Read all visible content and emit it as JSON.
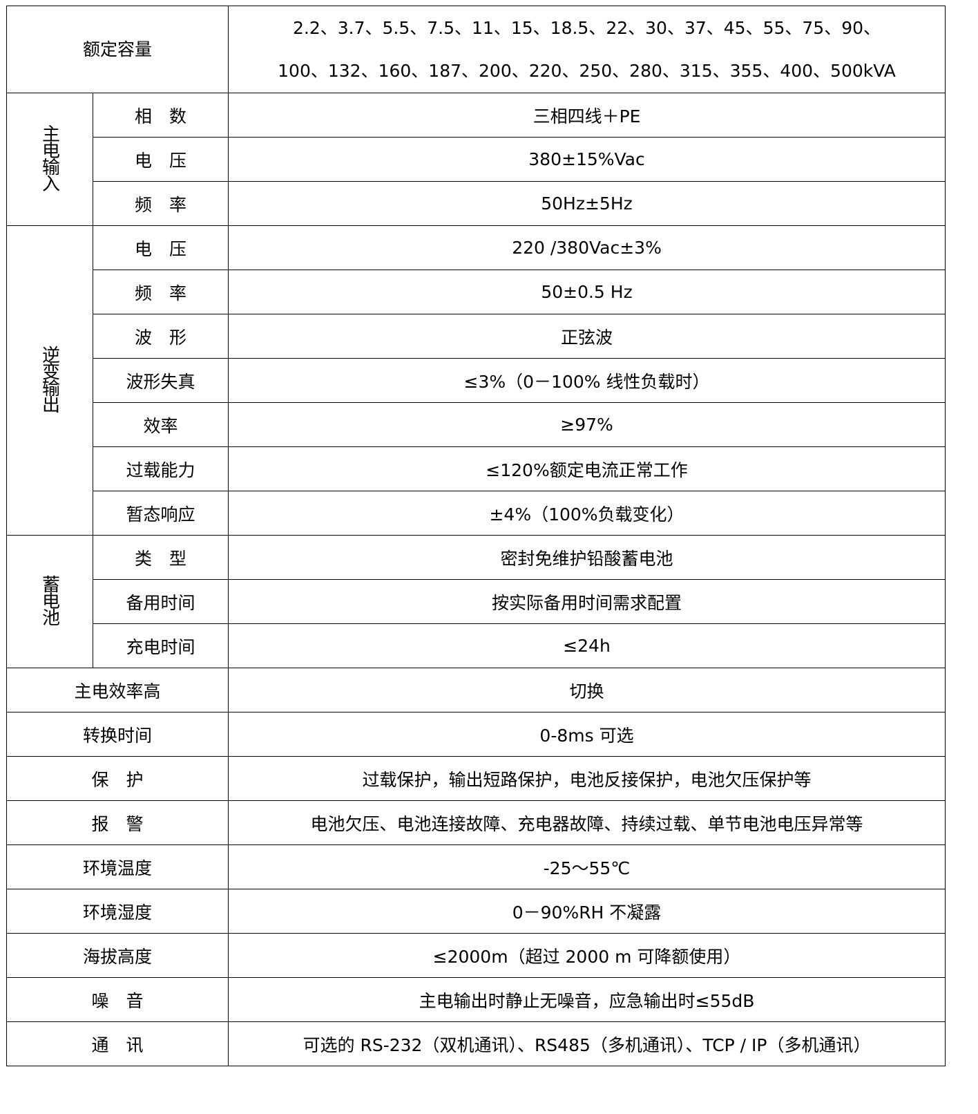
{
  "rated_capacity": {
    "label": "额定容量",
    "line1": "2.2、3.7、5.5、7.5、11、15、18.5、22、30、37、45、55、75、90、",
    "line2": "100、132、160、187、200、220、250、280、315、355、400、500kVA"
  },
  "mains_input": {
    "group": "主电输入",
    "rows": [
      {
        "label": "相　数",
        "value": "三相四线＋PE"
      },
      {
        "label": "电　压",
        "value": "380±15%Vac"
      },
      {
        "label": "频　率",
        "value": "50Hz±5Hz"
      }
    ]
  },
  "inverter_output": {
    "group": "逆变输出",
    "rows": [
      {
        "label": "电　压",
        "value": "220 /380Vac±3%"
      },
      {
        "label": "频　率",
        "value": "50±0.5 Hz"
      },
      {
        "label": "波　形",
        "value": "正弦波"
      },
      {
        "label": "波形失真",
        "value": "≤3%（0－100% 线性负载时）"
      },
      {
        "label": "效率",
        "value": "≥97%"
      },
      {
        "label": "过载能力",
        "value": "≤120%额定电流正常工作"
      },
      {
        "label": "暂态响应",
        "value": "±4%（100%负载变化）"
      }
    ]
  },
  "battery": {
    "group": "蓄电池",
    "rows": [
      {
        "label": "类　型",
        "value": "密封免维护铅酸蓄电池"
      },
      {
        "label": "备用时间",
        "value": "按实际备用时间需求配置"
      },
      {
        "label": "充电时间",
        "value": "≤24h"
      }
    ]
  },
  "other": [
    {
      "label": "主电效率高",
      "value": "切换"
    },
    {
      "label": "转换时间",
      "value": "0-8ms 可选"
    },
    {
      "label": "保　护",
      "value": "过载保护，输出短路保护，电池反接保护，电池欠压保护等"
    },
    {
      "label": "报　警",
      "value": "电池欠压、电池连接故障、充电器故障、持续过载、单节电池电压异常等"
    },
    {
      "label": "环境温度",
      "value": "-25～55℃"
    },
    {
      "label": "环境湿度",
      "value": "0－90%RH 不凝露"
    },
    {
      "label": "海拔高度",
      "value": "≤2000m（超过 2000 m 可降额使用）"
    },
    {
      "label": "噪　音",
      "value": "主电输出时静止无噪音，应急输出时≤55dB"
    },
    {
      "label": "通　讯",
      "value": "可选的 RS-232（双机通讯）、RS485（多机通讯）、TCP / IP（多机通讯）"
    }
  ]
}
